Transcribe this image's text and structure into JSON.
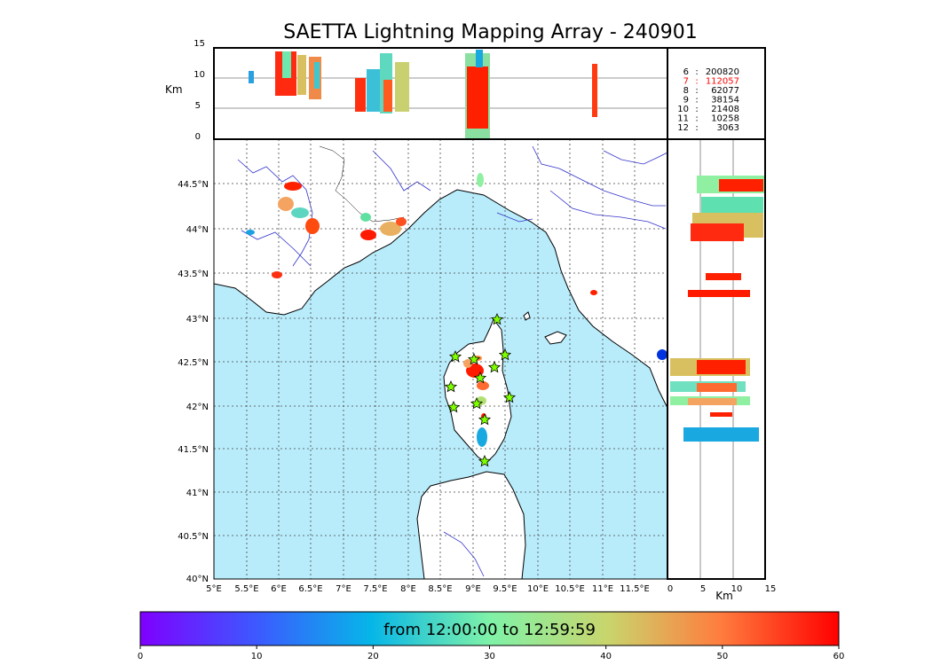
{
  "title": "SAETTA Lightning Mapping Array - 240901",
  "altitude_panel": {
    "ylabel": "Km",
    "yticks": [
      "15",
      "10",
      "5",
      "0"
    ]
  },
  "side_panel": {
    "xlabel": "Km",
    "xticks": [
      "0",
      "5",
      "10",
      "15"
    ]
  },
  "map": {
    "lon_ticks": [
      "5°E",
      "5.5°E",
      "6°E",
      "6.5°E",
      "7°E",
      "7.5°E",
      "8°E",
      "8.5°E",
      "9°E",
      "9.5°E",
      "10°E",
      "10.5°E",
      "11°E",
      "11.5°E"
    ],
    "lat_ticks": [
      "44.5°N",
      "44°N",
      "43.5°N",
      "43°N",
      "42.5°N",
      "42°N",
      "41.5°N",
      "41°N",
      "40.5°N",
      "40°N"
    ],
    "colors": {
      "sea": "#b9ecfb",
      "land": "#ffffff",
      "rivers": "#3333cc",
      "station": "#7fff00"
    }
  },
  "counts": [
    {
      "minute": "6",
      "sep": ":",
      "value": "200820",
      "color": "#000000"
    },
    {
      "minute": "7",
      "sep": ":",
      "value": "112057",
      "color": "#ff0000"
    },
    {
      "minute": "8",
      "sep": ":",
      "value": "62077",
      "color": "#000000"
    },
    {
      "minute": "9",
      "sep": ":",
      "value": "38154",
      "color": "#000000"
    },
    {
      "minute": "10",
      "sep": ":",
      "value": "21408",
      "color": "#000000"
    },
    {
      "minute": "11",
      "sep": ":",
      "value": "10258",
      "color": "#000000"
    },
    {
      "minute": "12",
      "sep": ":",
      "value": "3063",
      "color": "#000000"
    }
  ],
  "colorbar": {
    "label": "from 12:00:00 to 12:59:59",
    "ticks": [
      "0",
      "10",
      "20",
      "30",
      "40",
      "50",
      "60"
    ]
  }
}
